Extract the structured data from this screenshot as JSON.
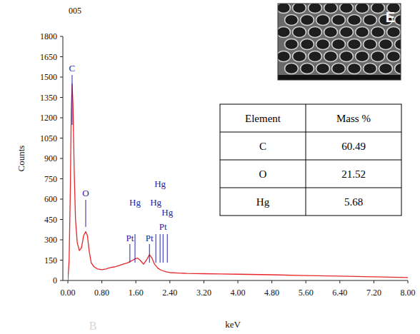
{
  "chart_data": {
    "type": "line",
    "title": "005",
    "xlabel": "keV",
    "ylabel": "Counts",
    "color": "#e8262a",
    "x": [
      0,
      0.03,
      0.06,
      0.08,
      0.1,
      0.12,
      0.15,
      0.18,
      0.22,
      0.27,
      0.32,
      0.37,
      0.42,
      0.46,
      0.5,
      0.55,
      0.62,
      0.7,
      0.8,
      0.9,
      1.0,
      1.1,
      1.2,
      1.3,
      1.4,
      1.5,
      1.58,
      1.64,
      1.7,
      1.78,
      1.85,
      1.92,
      1.98,
      2.04,
      2.12,
      2.2,
      2.3,
      2.4,
      2.6,
      2.8,
      3.2,
      3.6,
      4.0,
      4.8,
      5.6,
      6.4,
      7.2,
      8.0
    ],
    "values": [
      0,
      150,
      700,
      1250,
      1450,
      1300,
      800,
      450,
      280,
      220,
      240,
      330,
      360,
      330,
      220,
      130,
      100,
      85,
      80,
      85,
      95,
      100,
      110,
      120,
      130,
      145,
      160,
      165,
      150,
      120,
      150,
      190,
      165,
      120,
      90,
      75,
      65,
      58,
      55,
      52,
      50,
      48,
      46,
      42,
      36,
      32,
      27,
      22
    ],
    "xlim": [
      0,
      8
    ],
    "ylim": [
      0,
      1800
    ],
    "xticks": [
      {
        "value": 0,
        "label": "0.00"
      },
      {
        "value": 0.8,
        "label": "0.80"
      },
      {
        "value": 1.6,
        "label": "1.60"
      },
      {
        "value": 2.4,
        "label": "2.40"
      },
      {
        "value": 3.2,
        "label": "3.20"
      },
      {
        "value": 4.0,
        "label": "4.00"
      },
      {
        "value": 4.8,
        "label": "4.80"
      },
      {
        "value": 5.6,
        "label": "5.60"
      },
      {
        "value": 6.4,
        "label": "6.40"
      },
      {
        "value": 7.2,
        "label": "7.20"
      },
      {
        "value": 8.0,
        "label": "8.00"
      }
    ],
    "yticks": [
      0,
      150,
      300,
      450,
      600,
      750,
      900,
      1050,
      1200,
      1350,
      1500,
      1650,
      1800
    ],
    "grid": false,
    "annotations": [
      {
        "label": "C",
        "x": 0.1
      },
      {
        "label": "O",
        "x": 0.42
      },
      {
        "label": "Pt",
        "x": 1.46
      },
      {
        "label": "Hg",
        "x": 1.58
      },
      {
        "label": "Pt",
        "x": 1.92
      },
      {
        "label": "Hg",
        "x": 2.07
      },
      {
        "label": "Hg",
        "x": 2.17
      },
      {
        "label": "Pt",
        "x": 2.24
      },
      {
        "label": "Hg",
        "x": 2.34
      }
    ],
    "inset_label": "E",
    "table": {
      "columns": [
        "Element",
        "Mass %"
      ],
      "rows": [
        [
          "C",
          60.49
        ],
        [
          "O",
          21.52
        ],
        [
          "Hg",
          5.68
        ]
      ]
    },
    "watermark": "B"
  }
}
